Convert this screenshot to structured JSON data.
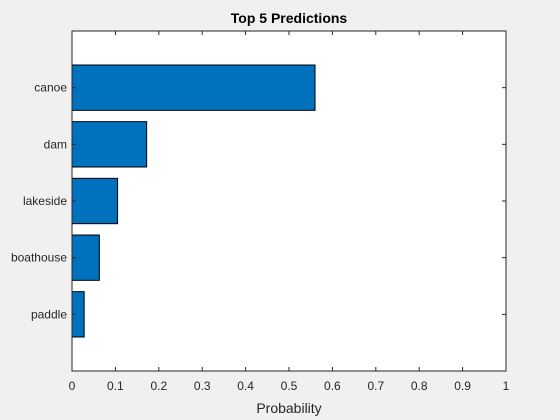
{
  "chart_data": {
    "type": "bar",
    "orientation": "horizontal",
    "title": "Top 5 Predictions",
    "xlabel": "Probability",
    "ylabel": "",
    "categories": [
      "canoe",
      "dam",
      "lakeside",
      "boathouse",
      "paddle"
    ],
    "values": [
      0.56,
      0.172,
      0.105,
      0.063,
      0.028
    ],
    "xlim": [
      0,
      1
    ],
    "xticks": [
      "0",
      "0.1",
      "0.2",
      "0.3",
      "0.4",
      "0.5",
      "0.6",
      "0.7",
      "0.8",
      "0.9",
      "1"
    ],
    "grid": false,
    "legend": "none",
    "bar_color": "#0072BD"
  }
}
